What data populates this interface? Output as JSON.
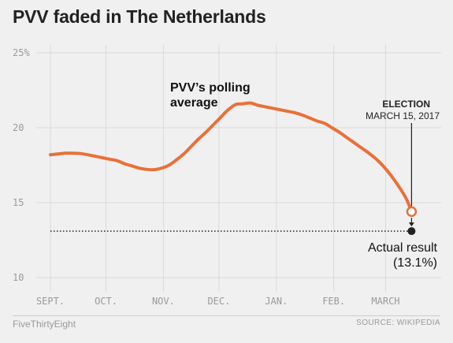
{
  "title": "PVV faded in The Netherlands",
  "footer": {
    "brand": "FiveThirtyEight",
    "source": "SOURCE: WIKIPEDIA"
  },
  "colors": {
    "line": "#e8703a",
    "grid": "#dadada",
    "text": "#222222",
    "muted": "#999999"
  },
  "chart_data": {
    "type": "line",
    "title": "PVV faded in The Netherlands",
    "xlabel": "",
    "ylabel": "",
    "ylim": [
      10,
      25
    ],
    "xlim": [
      "2016-09-01",
      "2017-03-31"
    ],
    "grid": true,
    "y_ticks": [
      {
        "value": 25,
        "label": "25%"
      },
      {
        "value": 20,
        "label": "20"
      },
      {
        "value": 15,
        "label": "15"
      },
      {
        "value": 10,
        "label": "10"
      }
    ],
    "x_ticks": [
      {
        "value": "2016-09-01",
        "label": "SEPT."
      },
      {
        "value": "2016-10-01",
        "label": "OCT."
      },
      {
        "value": "2016-11-01",
        "label": "NOV."
      },
      {
        "value": "2016-12-01",
        "label": "DEC."
      },
      {
        "value": "2017-01-01",
        "label": "JAN."
      },
      {
        "value": "2017-02-01",
        "label": "FEB."
      },
      {
        "value": "2017-03-01",
        "label": "MARCH"
      }
    ],
    "series": [
      {
        "name": "PVV's polling average",
        "x": [
          "2016-09-01",
          "2016-09-05",
          "2016-09-09",
          "2016-09-13",
          "2016-09-17",
          "2016-09-21",
          "2016-09-25",
          "2016-09-29",
          "2016-10-03",
          "2016-10-07",
          "2016-10-11",
          "2016-10-15",
          "2016-10-19",
          "2016-10-23",
          "2016-10-27",
          "2016-10-31",
          "2016-11-04",
          "2016-11-08",
          "2016-11-12",
          "2016-11-16",
          "2016-11-20",
          "2016-11-24",
          "2016-11-28",
          "2016-12-02",
          "2016-12-06",
          "2016-12-10",
          "2016-12-14",
          "2016-12-18",
          "2016-12-22",
          "2016-12-26",
          "2016-12-30",
          "2017-01-03",
          "2017-01-07",
          "2017-01-11",
          "2017-01-15",
          "2017-01-19",
          "2017-01-23",
          "2017-01-27",
          "2017-01-31",
          "2017-02-04",
          "2017-02-08",
          "2017-02-12",
          "2017-02-16",
          "2017-02-20",
          "2017-02-24",
          "2017-02-28",
          "2017-03-04",
          "2017-03-08",
          "2017-03-12",
          "2017-03-15"
        ],
        "values": [
          18.2,
          18.25,
          18.3,
          18.3,
          18.28,
          18.2,
          18.1,
          18.0,
          17.9,
          17.8,
          17.6,
          17.45,
          17.3,
          17.22,
          17.2,
          17.3,
          17.5,
          17.85,
          18.25,
          18.75,
          19.25,
          19.7,
          20.2,
          20.7,
          21.2,
          21.55,
          21.6,
          21.65,
          21.5,
          21.4,
          21.3,
          21.2,
          21.1,
          21.0,
          20.85,
          20.65,
          20.45,
          20.3,
          20.0,
          19.7,
          19.35,
          19.0,
          18.65,
          18.3,
          17.9,
          17.4,
          16.8,
          16.1,
          15.3,
          14.4
        ]
      }
    ],
    "annotations": [
      {
        "text": "PVV's polling average",
        "lines": [
          "PVV’s polling",
          "average"
        ]
      },
      {
        "text": "ELECTION",
        "subtext": "MARCH 15, 2017",
        "x": "2017-03-15",
        "y": 14.4
      },
      {
        "text": "Actual result",
        "subtext": "(13.1%)",
        "x": "2017-03-15",
        "y": 13.1
      }
    ],
    "reference_line": {
      "y": 13.1,
      "style": "dotted"
    }
  }
}
